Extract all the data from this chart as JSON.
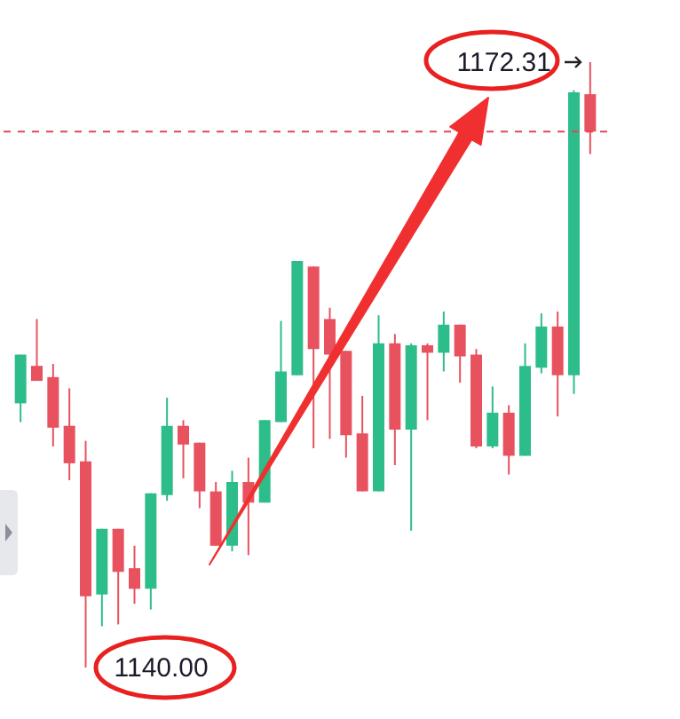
{
  "chart_data": {
    "type": "candlestick",
    "categories": [
      null,
      null,
      null,
      null,
      null,
      null,
      null,
      null,
      null,
      null,
      null,
      null,
      null,
      null,
      null,
      null,
      null,
      null,
      null,
      null,
      null,
      null,
      null,
      null,
      null,
      null,
      null,
      null,
      null,
      null,
      null,
      null,
      null,
      null,
      null,
      null
    ],
    "ohlc": [
      [
        1154.1,
        1156.7,
        1153.1,
        1156.7
      ],
      [
        1156.1,
        1158.6,
        1155.3,
        1155.3
      ],
      [
        1155.5,
        1156.2,
        1151.8,
        1152.8
      ],
      [
        1152.9,
        1154.9,
        1150.0,
        1150.9
      ],
      [
        1151.0,
        1152.1,
        1140.0,
        1143.8
      ],
      [
        1143.9,
        1147.4,
        1142.2,
        1147.4
      ],
      [
        1147.4,
        1147.4,
        1142.3,
        1145.1
      ],
      [
        1145.3,
        1146.5,
        1143.4,
        1144.2
      ],
      [
        1144.2,
        1149.3,
        1143.1,
        1149.3
      ],
      [
        1149.2,
        1154.4,
        1148.9,
        1152.9
      ],
      [
        1152.9,
        1153.2,
        1150.1,
        1151.9
      ],
      [
        1152.0,
        1152.0,
        1148.5,
        1149.4
      ],
      [
        1149.4,
        1149.9,
        1146.5,
        1146.5
      ],
      [
        1146.5,
        1150.5,
        1146.2,
        1149.9
      ],
      [
        1149.9,
        1151.2,
        1146.0,
        1148.8
      ],
      [
        1148.8,
        1153.2,
        1148.8,
        1153.2
      ],
      [
        1153.1,
        1158.5,
        1153.1,
        1155.8
      ],
      [
        1155.6,
        1161.7,
        1155.6,
        1161.7
      ],
      [
        1161.4,
        1161.4,
        1151.7,
        1157.0
      ],
      [
        1158.6,
        1159.2,
        1152.2,
        1156.7
      ],
      [
        1156.9,
        1156.9,
        1151.2,
        1152.4
      ],
      [
        1152.5,
        1154.5,
        1149.4,
        1149.4
      ],
      [
        1149.4,
        1158.8,
        1149.4,
        1157.3
      ],
      [
        1157.3,
        1157.8,
        1150.8,
        1152.7
      ],
      [
        1152.7,
        1157.3,
        1147.3,
        1157.2
      ],
      [
        1157.2,
        1157.3,
        1153.2,
        1156.8
      ],
      [
        1156.8,
        1159.0,
        1155.8,
        1158.3
      ],
      [
        1158.3,
        1158.3,
        1155.2,
        1156.6
      ],
      [
        1156.7,
        1157.0,
        1151.7,
        1151.8
      ],
      [
        1151.8,
        1155.0,
        1151.7,
        1153.6
      ],
      [
        1153.6,
        1154.0,
        1150.3,
        1151.3
      ],
      [
        1151.3,
        1157.3,
        1151.3,
        1156.1
      ],
      [
        1156.0,
        1158.9,
        1155.7,
        1158.2
      ],
      [
        1158.2,
        1159.0,
        1153.4,
        1155.6
      ],
      [
        1155.6,
        1170.8,
        1154.6,
        1170.7
      ],
      [
        1170.6,
        1172.31,
        1167.4,
        1168.6
      ]
    ],
    "colors": [
      "#2dbd8a",
      "#e8525f",
      "#e8525f",
      "#e8525f",
      "#e8525f",
      "#2dbd8a",
      "#e8525f",
      "#e8525f",
      "#2dbd8a",
      "#2dbd8a",
      "#e8525f",
      "#e8525f",
      "#e8525f",
      "#2dbd8a",
      "#e8525f",
      "#2dbd8a",
      "#2dbd8a",
      "#2dbd8a",
      "#e8525f",
      "#e8525f",
      "#e8525f",
      "#e8525f",
      "#2dbd8a",
      "#e8525f",
      "#2dbd8a",
      "#e8525f",
      "#2dbd8a",
      "#e8525f",
      "#e8525f",
      "#2dbd8a",
      "#e8525f",
      "#2dbd8a",
      "#2dbd8a",
      "#e8525f",
      "#2dbd8a",
      "#e8525f"
    ],
    "ref_lines": [
      {
        "axis": "y",
        "value": 1168.6,
        "color": "#e0475a",
        "line_style": "dashed"
      }
    ],
    "annotations": [
      "1172.31",
      "1140.00"
    ]
  }
}
